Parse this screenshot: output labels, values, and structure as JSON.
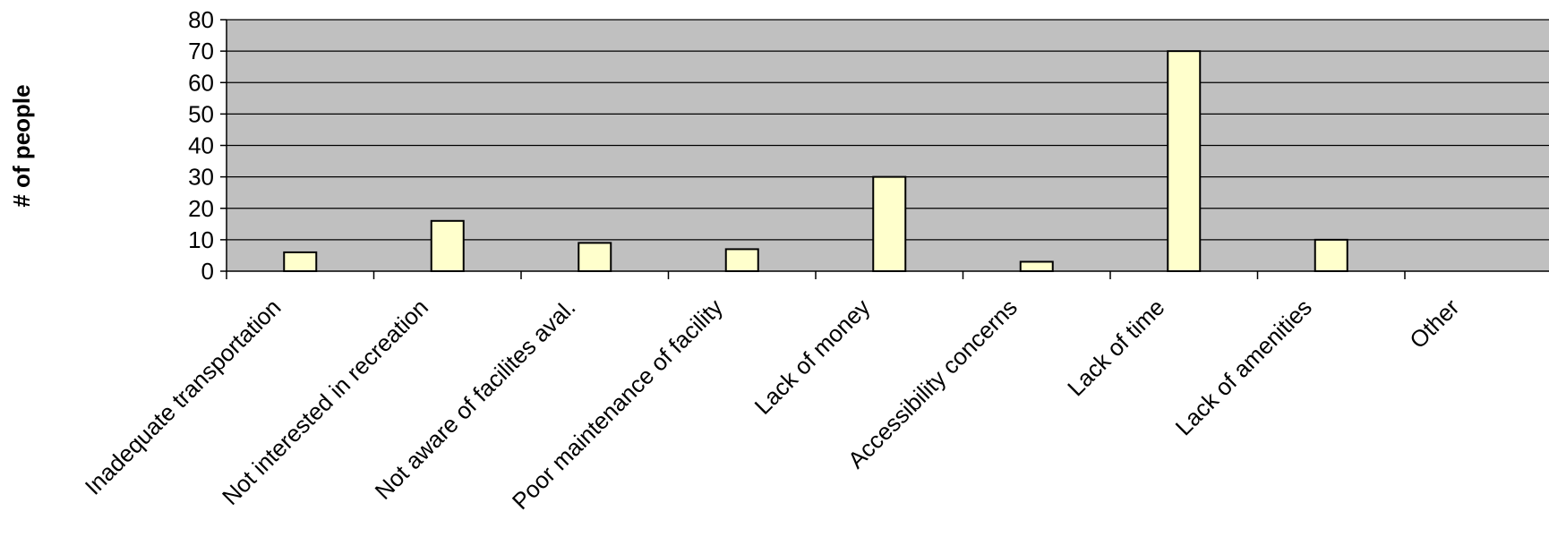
{
  "chart_data": {
    "type": "bar",
    "title": "",
    "xlabel": "",
    "ylabel": "# of people",
    "categories": [
      "Inadequate transportation",
      "Not interested in recreation",
      "Not aware of facilites aval.",
      "Poor maintenance of facility",
      "Lack of money",
      "Accessibility concerns",
      "Lack of time",
      "Lack of amenities",
      "Other"
    ],
    "series": [
      {
        "values": [
          6,
          16,
          9,
          7,
          30,
          3,
          70,
          10,
          0
        ]
      }
    ],
    "ylim": [
      0,
      80
    ],
    "yticks": [
      0,
      10,
      20,
      30,
      40,
      50,
      60,
      70,
      80
    ],
    "grid": true,
    "legend": "none",
    "colors": {
      "plot_background": "#c0c0c0",
      "bar_fill": "#ffffcc",
      "bar_stroke": "#000000",
      "gridline": "#000000"
    }
  }
}
